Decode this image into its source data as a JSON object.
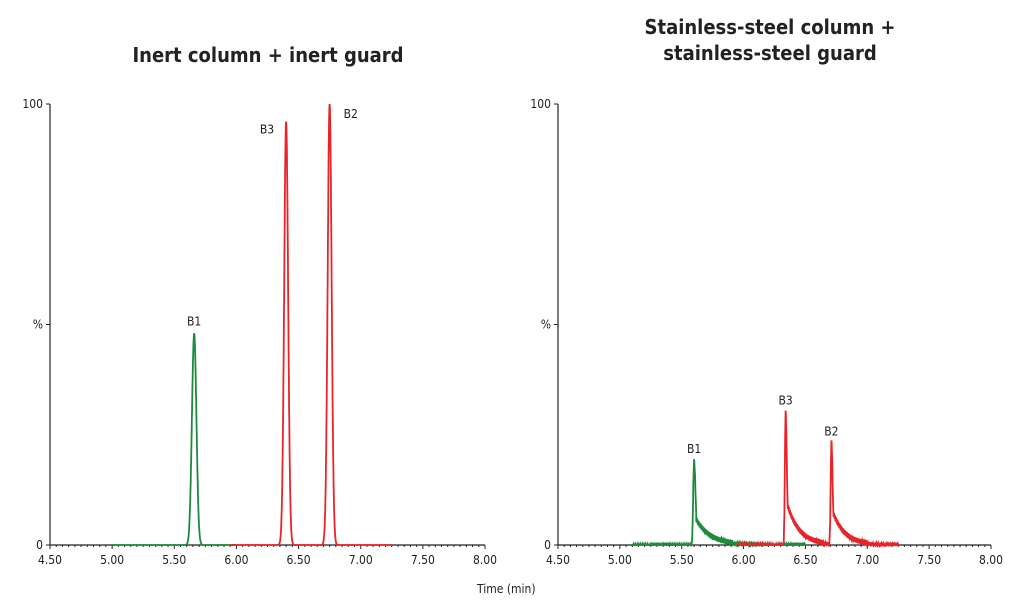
{
  "xlabel": "Time (min)",
  "colors": {
    "B1": "#1e8a3e",
    "B2": "#e8242b",
    "B3": "#e8242b",
    "axis": "#222222"
  },
  "chart_data": [
    {
      "type": "line",
      "title": "Inert column + inert guard",
      "title_lines": [
        "Inert column + inert guard"
      ],
      "xlim": [
        4.5,
        8.0
      ],
      "ylim": [
        0,
        100
      ],
      "x_ticks": [
        "4.50",
        "5.00",
        "5.50",
        "6.00",
        "6.50",
        "7.00",
        "7.50",
        "8.00"
      ],
      "y_ticks": [
        "0",
        "%",
        "100"
      ],
      "grid": false,
      "series": [
        {
          "name": "B1",
          "color": "green",
          "x_range": [
            5.0,
            6.0
          ],
          "peak_rt": 5.66,
          "peak_height": 48,
          "width": 0.018,
          "tailing": 0.0
        },
        {
          "name": "B3",
          "color": "red",
          "x_range": [
            5.95,
            7.25
          ],
          "peak_rt": 6.4,
          "peak_height": 96,
          "width": 0.016,
          "tailing": 0.0
        },
        {
          "name": "B2",
          "color": "red",
          "x_range": [
            5.95,
            7.25
          ],
          "peak_rt": 6.75,
          "peak_height": 100,
          "width": 0.016,
          "tailing": 0.0
        }
      ]
    },
    {
      "type": "line",
      "title": "Stainless-steel column + stainless-steel guard",
      "title_lines": [
        "Stainless-steel column +",
        "stainless-steel guard"
      ],
      "xlim": [
        4.5,
        8.0
      ],
      "ylim": [
        0,
        100
      ],
      "x_ticks": [
        "4.50",
        "5.00",
        "5.50",
        "6.00",
        "6.50",
        "7.00",
        "7.50",
        "8.00"
      ],
      "y_ticks": [
        "0",
        "%",
        "100"
      ],
      "grid": false,
      "series": [
        {
          "name": "B1",
          "color": "green",
          "x_range": [
            5.1,
            6.5
          ],
          "peak_rt": 5.6,
          "peak_height": 19,
          "width": 0.012,
          "tailing": 0.12
        },
        {
          "name": "B3",
          "color": "red",
          "x_range": [
            5.95,
            7.25
          ],
          "peak_rt": 6.34,
          "peak_height": 30,
          "width": 0.01,
          "tailing": 0.1
        },
        {
          "name": "B2",
          "color": "red",
          "x_range": [
            5.95,
            7.25
          ],
          "peak_rt": 6.71,
          "peak_height": 23,
          "width": 0.01,
          "tailing": 0.1
        }
      ]
    }
  ]
}
